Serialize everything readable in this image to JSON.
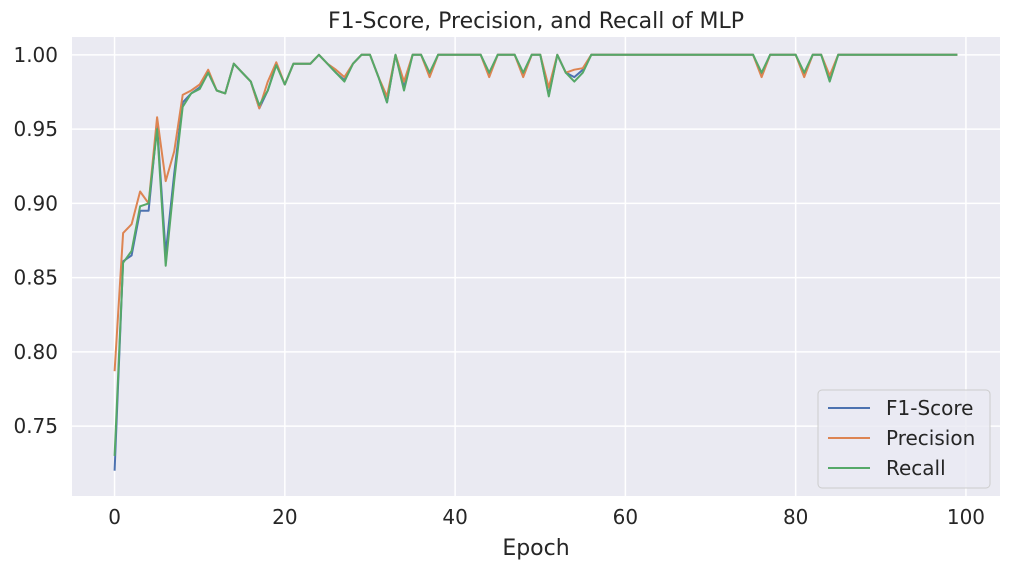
{
  "chart_data": {
    "type": "line",
    "title": "F1-Score, Precision, and Recall of MLP",
    "xlabel": "Epoch",
    "ylabel": "",
    "xlim": [
      -5,
      104
    ],
    "ylim": [
      0.703,
      1.012
    ],
    "xticks": [
      0,
      20,
      40,
      60,
      80,
      100
    ],
    "xtick_labels": [
      "0",
      "20",
      "40",
      "60",
      "80",
      "100"
    ],
    "yticks": [
      0.75,
      0.8,
      0.85,
      0.9,
      0.95,
      1.0
    ],
    "ytick_labels": [
      "0.75",
      "0.80",
      "0.85",
      "0.90",
      "0.95",
      "1.00"
    ],
    "grid": true,
    "legend_position": "lower-right",
    "background": "#eaeaf2",
    "series": [
      {
        "name": "F1-Score",
        "color": "#4c72b0",
        "x": [
          0,
          1,
          2,
          3,
          4,
          5,
          6,
          7,
          8,
          9,
          10,
          11,
          12,
          13,
          14,
          15,
          16,
          17,
          18,
          19,
          20,
          21,
          22,
          23,
          24,
          25,
          26,
          27,
          28,
          29,
          30,
          31,
          32,
          33,
          34,
          35,
          36,
          37,
          38,
          39,
          40,
          41,
          42,
          43,
          44,
          45,
          46,
          47,
          48,
          49,
          50,
          51,
          52,
          53,
          54,
          55,
          56,
          57,
          58,
          59,
          60,
          61,
          62,
          63,
          64,
          65,
          66,
          67,
          68,
          69,
          70,
          71,
          72,
          73,
          74,
          75,
          76,
          77,
          78,
          79,
          80,
          81,
          82,
          83,
          84,
          85,
          86,
          87,
          88,
          89,
          90,
          91,
          92,
          93,
          94,
          95,
          96,
          97,
          98,
          99
        ],
        "values": [
          0.72,
          0.861,
          0.865,
          0.895,
          0.895,
          0.953,
          0.866,
          0.92,
          0.968,
          0.974,
          0.978,
          0.988,
          0.976,
          0.974,
          0.994,
          0.988,
          0.982,
          0.964,
          0.976,
          0.994,
          0.98,
          0.994,
          0.994,
          0.994,
          1.0,
          0.994,
          0.988,
          0.983,
          0.994,
          1.0,
          1.0,
          0.985,
          0.968,
          1.0,
          0.978,
          1.0,
          1.0,
          0.986,
          1.0,
          1.0,
          1.0,
          1.0,
          1.0,
          1.0,
          0.986,
          1.0,
          1.0,
          1.0,
          0.986,
          1.0,
          1.0,
          0.973,
          1.0,
          0.988,
          0.985,
          0.99,
          1.0,
          1.0,
          1.0,
          1.0,
          1.0,
          1.0,
          1.0,
          1.0,
          1.0,
          1.0,
          1.0,
          1.0,
          1.0,
          1.0,
          1.0,
          1.0,
          1.0,
          1.0,
          1.0,
          1.0,
          0.986,
          1.0,
          1.0,
          1.0,
          1.0,
          0.986,
          1.0,
          1.0,
          0.984,
          1.0,
          1.0,
          1.0,
          1.0,
          1.0,
          1.0,
          1.0,
          1.0,
          1.0,
          1.0,
          1.0,
          1.0,
          1.0,
          1.0,
          1.0
        ]
      },
      {
        "name": "Precision",
        "color": "#dd8452",
        "x": [
          0,
          1,
          2,
          3,
          4,
          5,
          6,
          7,
          8,
          9,
          10,
          11,
          12,
          13,
          14,
          15,
          16,
          17,
          18,
          19,
          20,
          21,
          22,
          23,
          24,
          25,
          26,
          27,
          28,
          29,
          30,
          31,
          32,
          33,
          34,
          35,
          36,
          37,
          38,
          39,
          40,
          41,
          42,
          43,
          44,
          45,
          46,
          47,
          48,
          49,
          50,
          51,
          52,
          53,
          54,
          55,
          56,
          57,
          58,
          59,
          60,
          61,
          62,
          63,
          64,
          65,
          66,
          67,
          68,
          69,
          70,
          71,
          72,
          73,
          74,
          75,
          76,
          77,
          78,
          79,
          80,
          81,
          82,
          83,
          84,
          85,
          86,
          87,
          88,
          89,
          90,
          91,
          92,
          93,
          94,
          95,
          96,
          97,
          98,
          99
        ],
        "values": [
          0.787,
          0.88,
          0.886,
          0.908,
          0.9,
          0.958,
          0.915,
          0.935,
          0.973,
          0.976,
          0.98,
          0.99,
          0.976,
          0.974,
          0.994,
          0.988,
          0.982,
          0.964,
          0.982,
          0.995,
          0.98,
          0.994,
          0.994,
          0.994,
          1.0,
          0.994,
          0.99,
          0.985,
          0.994,
          1.0,
          1.0,
          0.985,
          0.972,
          1.0,
          0.982,
          1.0,
          1.0,
          0.985,
          1.0,
          1.0,
          1.0,
          1.0,
          1.0,
          1.0,
          0.985,
          1.0,
          1.0,
          1.0,
          0.985,
          1.0,
          1.0,
          0.978,
          1.0,
          0.988,
          0.99,
          0.991,
          1.0,
          1.0,
          1.0,
          1.0,
          1.0,
          1.0,
          1.0,
          1.0,
          1.0,
          1.0,
          1.0,
          1.0,
          1.0,
          1.0,
          1.0,
          1.0,
          1.0,
          1.0,
          1.0,
          1.0,
          0.985,
          1.0,
          1.0,
          1.0,
          1.0,
          0.985,
          1.0,
          1.0,
          0.986,
          1.0,
          1.0,
          1.0,
          1.0,
          1.0,
          1.0,
          1.0,
          1.0,
          1.0,
          1.0,
          1.0,
          1.0,
          1.0,
          1.0,
          1.0
        ]
      },
      {
        "name": "Recall",
        "color": "#55a868",
        "x": [
          0,
          1,
          2,
          3,
          4,
          5,
          6,
          7,
          8,
          9,
          10,
          11,
          12,
          13,
          14,
          15,
          16,
          17,
          18,
          19,
          20,
          21,
          22,
          23,
          24,
          25,
          26,
          27,
          28,
          29,
          30,
          31,
          32,
          33,
          34,
          35,
          36,
          37,
          38,
          39,
          40,
          41,
          42,
          43,
          44,
          45,
          46,
          47,
          48,
          49,
          50,
          51,
          52,
          53,
          54,
          55,
          56,
          57,
          58,
          59,
          60,
          61,
          62,
          63,
          64,
          65,
          66,
          67,
          68,
          69,
          70,
          71,
          72,
          73,
          74,
          75,
          76,
          77,
          78,
          79,
          80,
          81,
          82,
          83,
          84,
          85,
          86,
          87,
          88,
          89,
          90,
          91,
          92,
          93,
          94,
          95,
          96,
          97,
          98,
          99
        ],
        "values": [
          0.73,
          0.86,
          0.868,
          0.898,
          0.9,
          0.95,
          0.858,
          0.915,
          0.965,
          0.974,
          0.977,
          0.988,
          0.976,
          0.974,
          0.994,
          0.988,
          0.982,
          0.966,
          0.976,
          0.993,
          0.98,
          0.994,
          0.994,
          0.994,
          1.0,
          0.994,
          0.988,
          0.982,
          0.994,
          1.0,
          1.0,
          0.985,
          0.968,
          1.0,
          0.976,
          1.0,
          1.0,
          0.988,
          1.0,
          1.0,
          1.0,
          1.0,
          1.0,
          1.0,
          0.988,
          1.0,
          1.0,
          1.0,
          0.988,
          1.0,
          1.0,
          0.972,
          1.0,
          0.988,
          0.982,
          0.988,
          1.0,
          1.0,
          1.0,
          1.0,
          1.0,
          1.0,
          1.0,
          1.0,
          1.0,
          1.0,
          1.0,
          1.0,
          1.0,
          1.0,
          1.0,
          1.0,
          1.0,
          1.0,
          1.0,
          1.0,
          0.988,
          1.0,
          1.0,
          1.0,
          1.0,
          0.988,
          1.0,
          1.0,
          0.982,
          1.0,
          1.0,
          1.0,
          1.0,
          1.0,
          1.0,
          1.0,
          1.0,
          1.0,
          1.0,
          1.0,
          1.0,
          1.0,
          1.0,
          1.0
        ]
      }
    ]
  }
}
